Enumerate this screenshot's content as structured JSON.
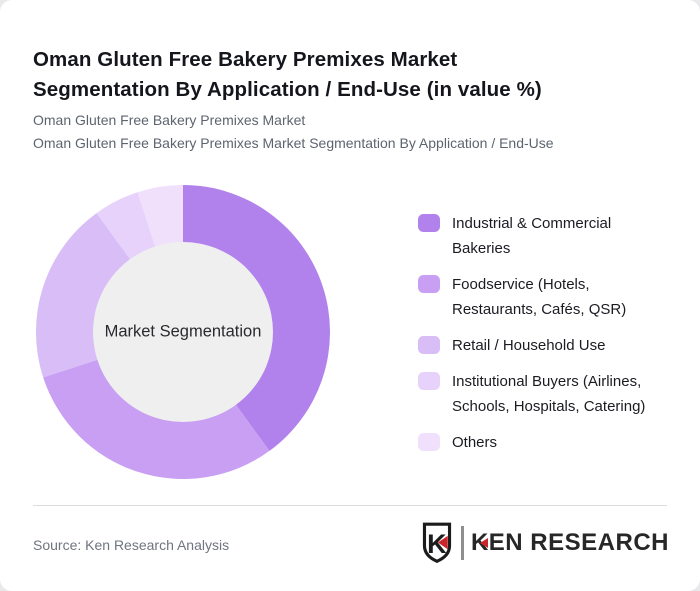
{
  "page": {
    "title_lines": [
      "Oman Gluten Free Bakery Premixes Market",
      "Segmentation By Application / End-Use (in value %)"
    ],
    "subtitle_lines": [
      "Oman Gluten Free Bakery Premixes Market",
      "Oman Gluten Free Bakery Premixes Market Segmentation By Application / End-Use"
    ]
  },
  "chart_data": {
    "type": "pie",
    "subtype": "donut",
    "title": "Oman Gluten Free Bakery Premixes Market Segmentation By Application / End-Use (in value %)",
    "center_label": "Market Segmentation",
    "values_unit": "percent of market value",
    "start_angle_deg": 0,
    "direction": "clockwise",
    "legend_position": "right",
    "inner_circle_color": "#f0eff0",
    "series": [
      {
        "label": "Industrial & Commercial Bakeries",
        "legend_lines": [
          "Industrial & Commercial",
          "Bakeries"
        ],
        "value": 40,
        "color": "#b282ec"
      },
      {
        "label": "Foodservice (Hotels, Restaurants, Cafés, QSR)",
        "legend_lines": [
          "Foodservice (Hotels,",
          "Restaurants, Cafés, QSR)"
        ],
        "value": 30,
        "color": "#c89ff2"
      },
      {
        "label": "Retail / Household Use",
        "legend_lines": [
          "Retail / Household Use"
        ],
        "value": 20,
        "color": "#d9bdf6"
      },
      {
        "label": "Institutional Buyers (Airlines, Schools, Hospitals, Catering)",
        "legend_lines": [
          "Institutional Buyers (Airlines,",
          "Schools, Hospitals, Catering)"
        ],
        "value": 5,
        "color": "#e6d2fa"
      },
      {
        "label": "Others",
        "legend_lines": [
          "Others"
        ],
        "value": 5,
        "color": "#f0e0fc"
      }
    ]
  },
  "footer": {
    "source": "Source: Ken Research Analysis",
    "logo_text": "KEN RESEARCH",
    "logo_icon": "ken-research-shield-k",
    "logo_accent_color": "#c9252c"
  }
}
